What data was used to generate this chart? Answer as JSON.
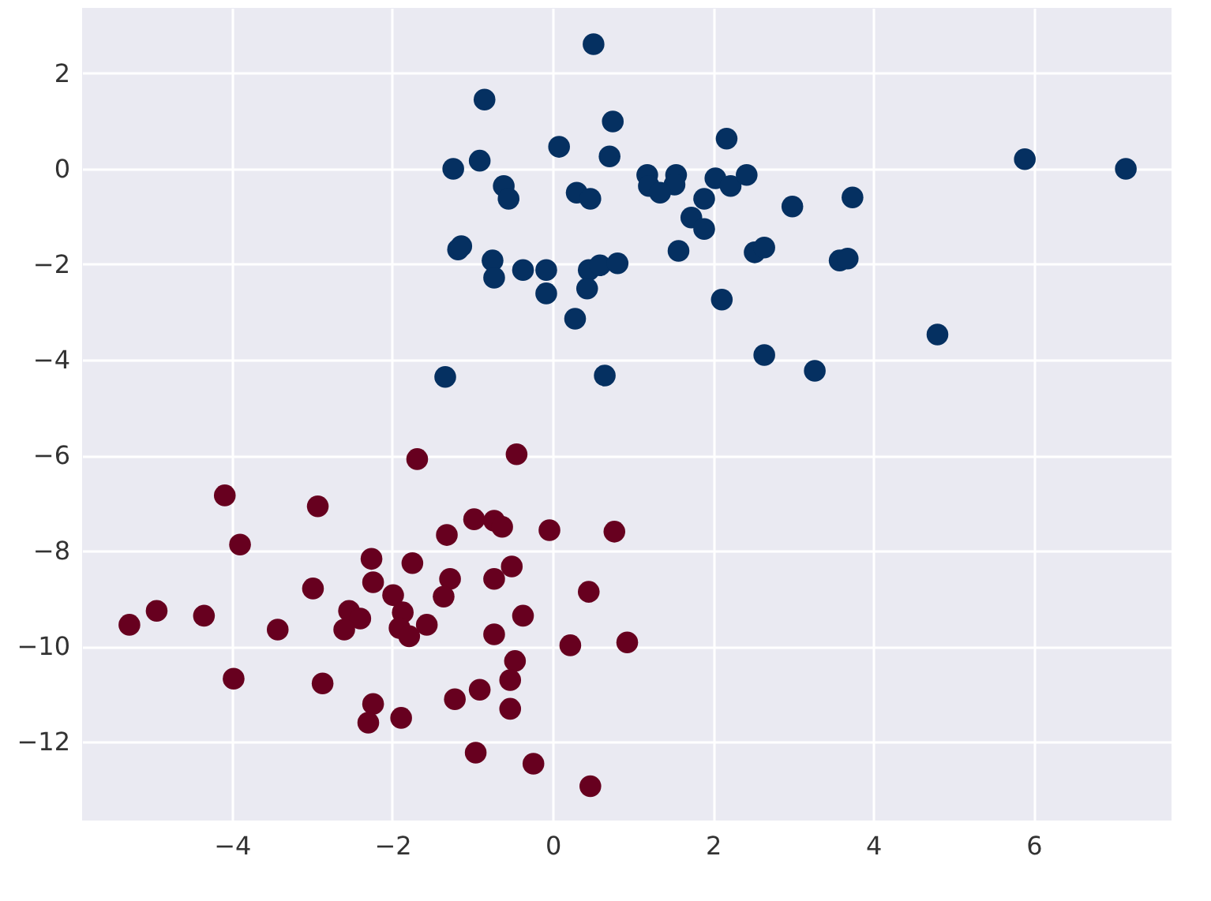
{
  "chart_data": {
    "type": "scatter",
    "xlim": [
      -5.87,
      7.72
    ],
    "ylim": [
      -13.65,
      3.37
    ],
    "xticks": [
      -4,
      -2,
      0,
      2,
      4,
      6
    ],
    "yticks": [
      -12,
      -10,
      -8,
      -6,
      -4,
      -2,
      0,
      2
    ],
    "grid": true,
    "marker": "circle",
    "series": [
      {
        "color": "#053061",
        "x": [
          0.51,
          -0.85,
          0.75,
          0.08,
          2.17,
          -1.24,
          -0.91,
          0.71,
          -0.61,
          -0.55,
          0.3,
          0.47,
          1.18,
          1.54,
          1.52,
          1.2,
          1.34,
          2.03,
          2.22,
          2.42,
          1.89,
          2.99,
          3.74,
          1.73,
          1.89,
          -1.18,
          -1.14,
          -0.75,
          -0.73,
          -0.37,
          -0.08,
          0.45,
          0.59,
          0.81,
          -0.08,
          0.43,
          0.28,
          1.57,
          2.52,
          2.64,
          3.58,
          3.68,
          2.11,
          -1.34,
          0.65,
          2.64,
          3.27,
          4.8,
          5.89,
          7.15
        ],
        "values": [
          2.61,
          1.45,
          0.99,
          0.46,
          0.63,
          0.0,
          0.17,
          0.26,
          -0.36,
          -0.63,
          -0.5,
          -0.63,
          -0.13,
          -0.13,
          -0.33,
          -0.36,
          -0.5,
          -0.2,
          -0.36,
          -0.13,
          -0.63,
          -0.79,
          -0.6,
          -1.02,
          -1.26,
          -1.69,
          -1.62,
          -1.92,
          -2.28,
          -2.12,
          -2.12,
          -2.12,
          -2.02,
          -1.98,
          -2.61,
          -2.51,
          -3.14,
          -1.72,
          -1.75,
          -1.65,
          -1.92,
          -1.88,
          -2.74,
          -4.36,
          -4.33,
          -3.9,
          -4.23,
          -3.47,
          0.2,
          0.0
        ]
      },
      {
        "color": "#67001f",
        "x": [
          -1.69,
          -0.45,
          -4.09,
          -2.93,
          -3.9,
          -0.98,
          -0.73,
          -0.63,
          -1.32,
          -0.04,
          0.77,
          -2.26,
          -1.75,
          -0.51,
          -0.73,
          -1.28,
          -1.36,
          -2.24,
          -1.99,
          -2.99,
          0.45,
          -0.37,
          -5.28,
          -4.94,
          -4.35,
          -3.43,
          -2.54,
          -2.4,
          -2.6,
          -1.87,
          -1.91,
          -1.79,
          -1.57,
          -0.73,
          0.22,
          0.93,
          -0.47,
          -0.53,
          -3.98,
          -2.87,
          -0.53,
          -0.91,
          -1.22,
          -2.24,
          -2.3,
          -1.89,
          -0.96,
          -0.24,
          0.47
        ],
        "values": [
          -6.08,
          -5.98,
          -6.84,
          -7.07,
          -7.87,
          -7.34,
          -7.37,
          -7.5,
          -7.67,
          -7.57,
          -7.6,
          -8.17,
          -8.26,
          -8.33,
          -8.59,
          -8.59,
          -8.96,
          -8.66,
          -8.93,
          -8.79,
          -8.86,
          -9.36,
          -9.55,
          -9.26,
          -9.36,
          -9.65,
          -9.26,
          -9.42,
          -9.65,
          -9.29,
          -9.62,
          -9.79,
          -9.55,
          -9.75,
          -9.98,
          -9.92,
          -10.31,
          -10.71,
          -10.68,
          -10.78,
          -11.31,
          -10.91,
          -11.11,
          -11.21,
          -11.6,
          -11.5,
          -12.23,
          -12.46,
          -12.93
        ]
      }
    ]
  }
}
